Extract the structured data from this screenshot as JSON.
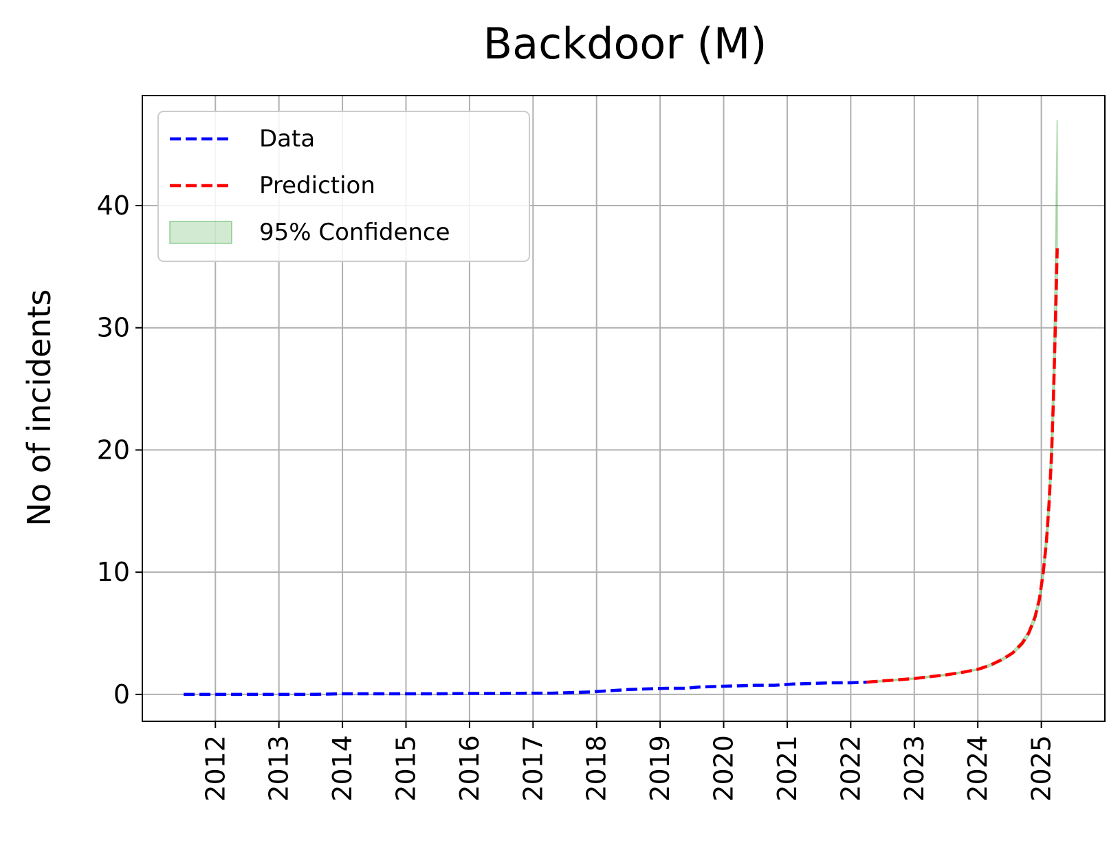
{
  "chart_data": {
    "type": "line",
    "title": "Backdoor (M)",
    "xlabel": "",
    "ylabel": "No of incidents",
    "xlim": [
      2010.85,
      2026.0
    ],
    "ylim": [
      -2.2,
      49
    ],
    "x_ticks": [
      2012,
      2013,
      2014,
      2015,
      2016,
      2017,
      2018,
      2019,
      2020,
      2021,
      2022,
      2023,
      2024,
      2025
    ],
    "x_tick_labels": [
      "2012",
      "2013",
      "2014",
      "2015",
      "2016",
      "2017",
      "2018",
      "2019",
      "2020",
      "2021",
      "2022",
      "2023",
      "2024",
      "2025"
    ],
    "y_ticks": [
      0,
      10,
      20,
      30,
      40
    ],
    "y_tick_labels": [
      "0",
      "10",
      "20",
      "30",
      "40"
    ],
    "grid": true,
    "legend_position": "upper-left",
    "series": [
      {
        "name": "Data",
        "style": "dashed",
        "color": "#0000ff",
        "x": [
          2011.5,
          2012.0,
          2012.5,
          2013.0,
          2013.5,
          2014.0,
          2014.5,
          2015.0,
          2015.5,
          2016.0,
          2016.5,
          2017.0,
          2017.3,
          2017.6,
          2017.9,
          2018.2,
          2018.5,
          2018.8,
          2019.1,
          2019.4,
          2019.6,
          2019.9,
          2020.2,
          2020.5,
          2020.8,
          2021.1,
          2021.4,
          2021.7,
          2022.0,
          2022.25
        ],
        "y": [
          0.0,
          0.0,
          0.0,
          0.0,
          0.0,
          0.05,
          0.05,
          0.05,
          0.05,
          0.08,
          0.08,
          0.1,
          0.1,
          0.15,
          0.2,
          0.3,
          0.4,
          0.45,
          0.5,
          0.5,
          0.6,
          0.65,
          0.7,
          0.75,
          0.75,
          0.85,
          0.9,
          0.95,
          0.95,
          1.0
        ]
      },
      {
        "name": "Prediction",
        "style": "dashed",
        "color": "#ff0000",
        "x": [
          2022.25,
          2022.5,
          2022.75,
          2023.0,
          2023.25,
          2023.5,
          2023.75,
          2024.0,
          2024.2,
          2024.4,
          2024.55,
          2024.7,
          2024.8,
          2024.9,
          2024.97,
          2025.03,
          2025.08,
          2025.12,
          2025.16,
          2025.19,
          2025.22,
          2025.25
        ],
        "y": [
          1.0,
          1.1,
          1.2,
          1.3,
          1.45,
          1.6,
          1.8,
          2.05,
          2.4,
          2.9,
          3.4,
          4.2,
          5.0,
          6.3,
          7.8,
          10.0,
          12.5,
          15.5,
          19.5,
          24.0,
          30.0,
          36.5
        ]
      }
    ],
    "confidence_band": {
      "name": "95% Confidence",
      "color": "#2ca02c",
      "opacity": 0.22,
      "x": [
        2022.25,
        2022.5,
        2022.75,
        2023.0,
        2023.25,
        2023.5,
        2023.75,
        2024.0,
        2024.2,
        2024.4,
        2024.55,
        2024.7,
        2024.8,
        2024.9,
        2024.97,
        2025.03,
        2025.08,
        2025.12,
        2025.16,
        2025.19,
        2025.22,
        2025.25
      ],
      "lower": [
        0.95,
        1.05,
        1.15,
        1.25,
        1.4,
        1.55,
        1.75,
        2.0,
        2.3,
        2.8,
        3.3,
        4.0,
        4.8,
        6.0,
        7.4,
        9.5,
        11.8,
        14.5,
        18.0,
        22.0,
        27.5,
        33.5
      ],
      "upper": [
        1.05,
        1.15,
        1.25,
        1.35,
        1.5,
        1.65,
        1.85,
        2.1,
        2.5,
        3.0,
        3.5,
        4.4,
        5.2,
        6.6,
        8.2,
        10.6,
        13.4,
        16.8,
        21.5,
        27.0,
        35.0,
        47.0
      ]
    },
    "legend": [
      {
        "label": "Data",
        "kind": "line",
        "color": "#0000ff"
      },
      {
        "label": "Prediction",
        "kind": "line",
        "color": "#ff0000"
      },
      {
        "label": "95% Confidence",
        "kind": "patch",
        "color": "#2ca02c"
      }
    ]
  }
}
